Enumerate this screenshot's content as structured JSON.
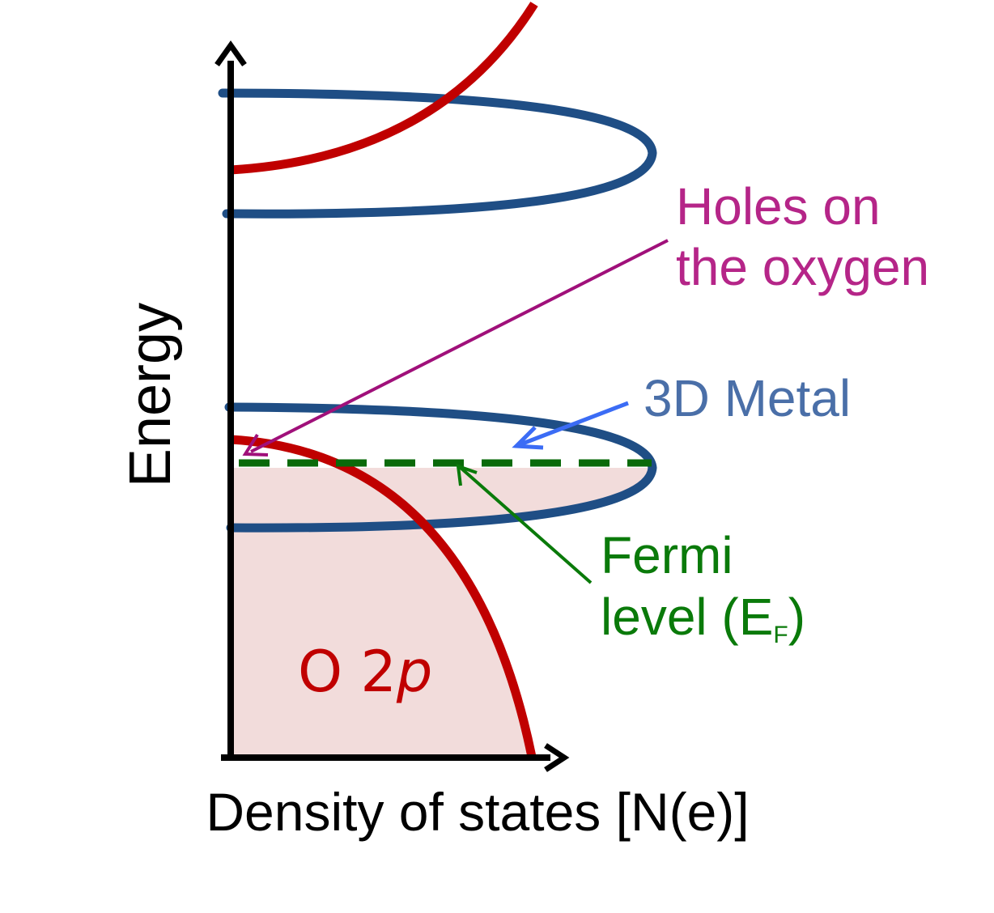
{
  "labels": {
    "y_axis": "Energy",
    "x_axis": "Density of states [N(e)]",
    "holes_line1": "Holes on",
    "holes_line2": "the oxygen",
    "metal": "3D Metal",
    "fermi_line1": "Fermi",
    "fermi_line2_prefix": "level (E",
    "fermi_subscript": "F",
    "fermi_line2_suffix": ")",
    "band_o2p_main": "O 2",
    "band_o2p_italic": "p"
  },
  "colors": {
    "axis": "#000000",
    "o2p_band": "#c00000",
    "metal_band": "#1f4e85",
    "filled_region": "#f2dcdb",
    "fermi": "#0a7a0a",
    "fermi_dash": "#0a6a0a",
    "holes": "#b52588",
    "holes_arrow": "#a0107a",
    "metal_label": "#4a6fa8",
    "metal_arrow": "#3b6cf5"
  }
}
